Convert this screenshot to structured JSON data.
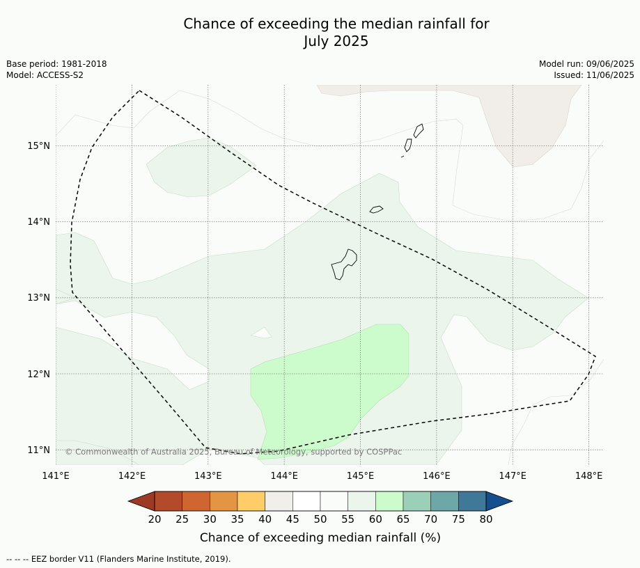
{
  "title": {
    "line1": "Chance of exceeding the median rainfall for",
    "line2": "July 2025"
  },
  "meta_left": {
    "base_period": "Base period: 1981-2018",
    "model": "Model: ACCESS-S2"
  },
  "meta_right": {
    "model_run": "Model run: 09/06/2025",
    "issued": "Issued: 11/06/2025"
  },
  "map": {
    "lon_ticks": [
      "141°E",
      "142°E",
      "143°E",
      "144°E",
      "145°E",
      "146°E",
      "147°E",
      "148°E"
    ],
    "lat_ticks": [
      "15°N",
      "14°N",
      "13°N",
      "12°N",
      "11°N"
    ],
    "lon_range": [
      141.0,
      148.2
    ],
    "lat_range": [
      10.8,
      15.8
    ],
    "copyright": "© Commonwealth of Australia 2025, Bureau of Meteorology, supported by COSPPac",
    "eez_line_color": "#000000",
    "gridlines": true
  },
  "colorbar": {
    "label": "Chance of exceeding median rainfall (%)",
    "ticks": [
      "20",
      "25",
      "30",
      "35",
      "40",
      "45",
      "50",
      "55",
      "60",
      "65",
      "70",
      "75",
      "80"
    ],
    "colors": [
      "#b34a29",
      "#cf6531",
      "#e39544",
      "#fecd68",
      "#f1efea",
      "#ffffff",
      "#fafcfa",
      "#ecf5ec",
      "#ccfccc",
      "#9ccfb8",
      "#6da7a7",
      "#3f7997"
    ],
    "under_color": "#9c3a25",
    "over_color": "#154e8c"
  },
  "footer": {
    "legend": "--  --  -- EEZ border V11 (Flanders Marine Institute, 2019)."
  }
}
